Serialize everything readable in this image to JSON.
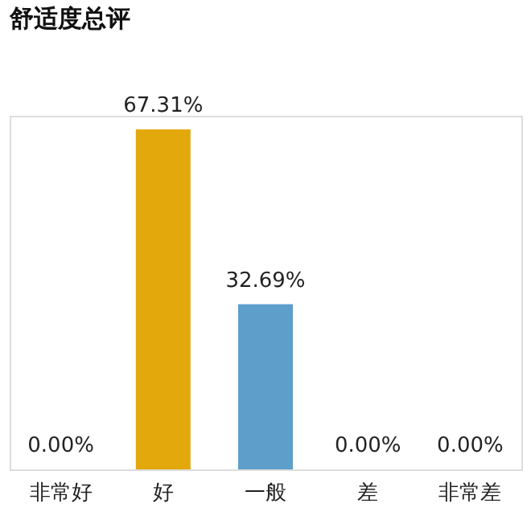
{
  "chart_data": {
    "type": "bar",
    "title": "舒适度总评",
    "categories": [
      "非常好",
      "好",
      "一般",
      "差",
      "非常差"
    ],
    "values": [
      0,
      67.31,
      32.69,
      0,
      0
    ],
    "colors": [
      null,
      "#e3a80b",
      "#5e9ecb",
      null,
      null
    ],
    "value_labels": [
      "0.00%",
      "67.31%",
      "32.69%",
      "0.00%",
      "0.00%"
    ],
    "grid": false
  }
}
